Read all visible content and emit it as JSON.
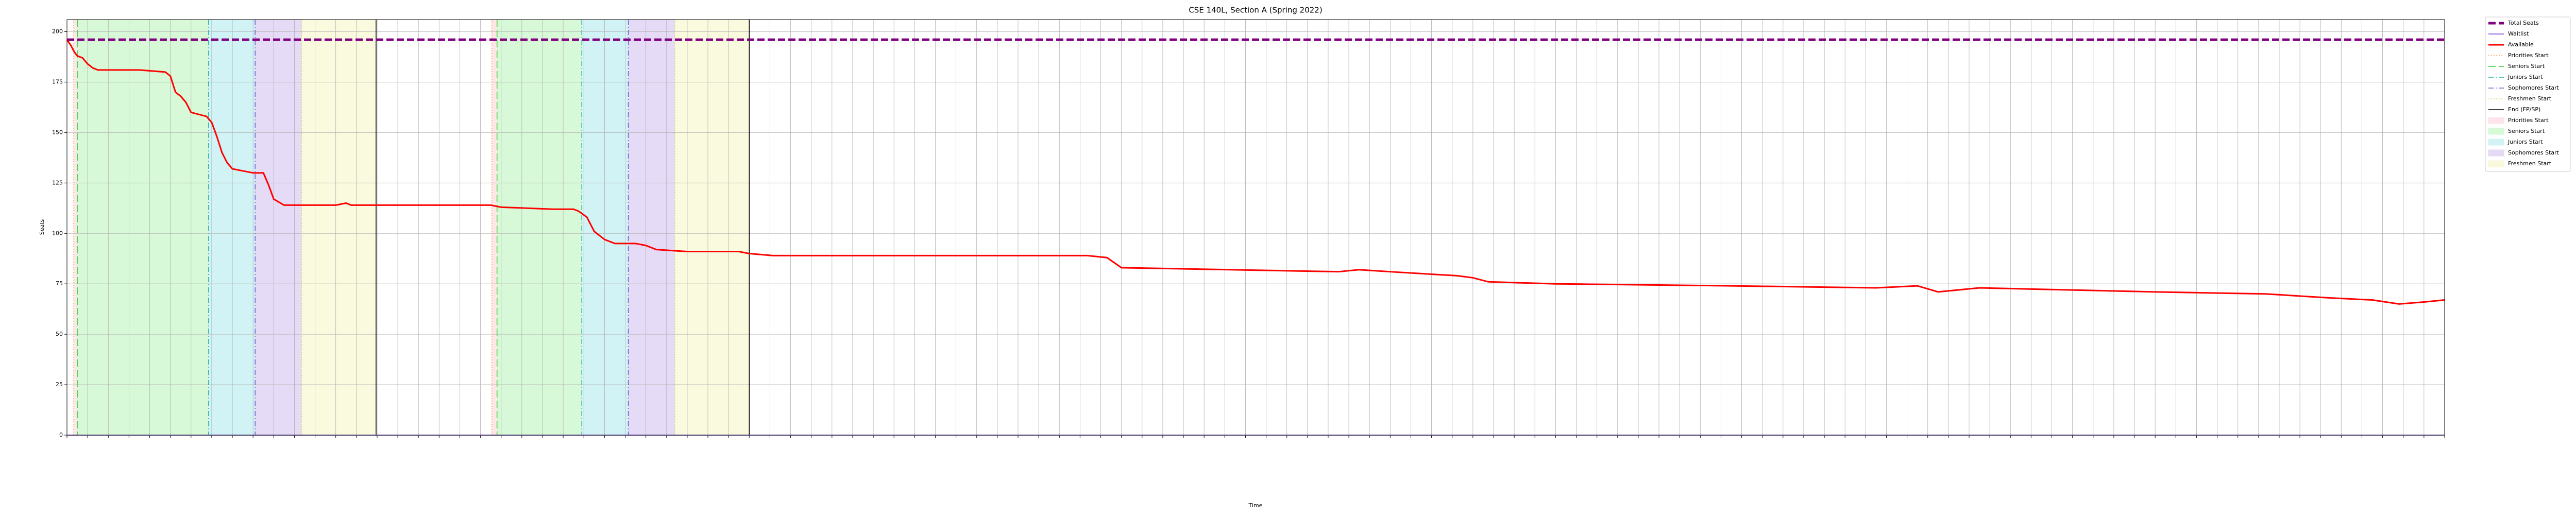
{
  "chart_data": {
    "type": "line",
    "title": "CSE 140L, Section A (Spring 2022)",
    "x_label": "Time",
    "y_label": "Seats",
    "xlim": [
      0,
      230
    ],
    "ylim": [
      0,
      206
    ],
    "yticks": [
      0,
      25,
      50,
      75,
      100,
      125,
      150,
      175,
      200
    ],
    "xticks": [
      0,
      2,
      4,
      6,
      8,
      10,
      12,
      14,
      16,
      18,
      20,
      22,
      24,
      26,
      28,
      30,
      32,
      34,
      36,
      38,
      40,
      42,
      44,
      46,
      48,
      50,
      52,
      54,
      56,
      58,
      60,
      62,
      64,
      66,
      68,
      70,
      72,
      74,
      76,
      78,
      80,
      82,
      84,
      86,
      88,
      90,
      92,
      94,
      96,
      98,
      100,
      102,
      104,
      106,
      108,
      110,
      112,
      114,
      116,
      118,
      120,
      122,
      124,
      126,
      128,
      130,
      132,
      134,
      136,
      138,
      140,
      142,
      144,
      146,
      148,
      150,
      152,
      154,
      156,
      158,
      160,
      162,
      164,
      166,
      168,
      170,
      172,
      174,
      176,
      178,
      180,
      182,
      184,
      186,
      188,
      190,
      192,
      194,
      196,
      198,
      200,
      202,
      204,
      206,
      208,
      210,
      212,
      214,
      216,
      218,
      220,
      222,
      224,
      226,
      228,
      230
    ],
    "grid": true,
    "legend": "outside-right",
    "series": [
      {
        "name": "Total Seats",
        "color": "#800080",
        "dash": "dashed",
        "width": 5,
        "x": [
          0,
          230
        ],
        "values": [
          196,
          196
        ]
      },
      {
        "name": "Waitlist",
        "color": "#9370db",
        "dash": "solid",
        "width": 2,
        "x": [
          0,
          230
        ],
        "values": [
          0,
          0
        ]
      },
      {
        "name": "Available",
        "color": "#ff0000",
        "dash": "solid",
        "width": 3,
        "x": [
          0,
          0.4,
          0.7,
          1,
          1.5,
          2,
          2.5,
          3,
          7,
          9.5,
          10,
          10.5,
          11,
          11.5,
          12,
          13.5,
          14,
          14.5,
          15,
          15.5,
          16,
          17,
          18,
          19,
          19.5,
          20,
          21,
          26,
          27,
          27.5,
          41,
          42,
          47,
          49,
          49.5,
          50.3,
          51,
          52,
          53,
          55,
          56,
          57,
          60,
          65,
          66,
          68.3,
          98.7,
          100.6,
          102,
          123,
          125,
          128,
          134.5,
          136,
          137.5,
          144,
          161,
          175,
          179,
          181,
          185,
          202,
          212.7,
          219,
          223,
          225.6,
          228,
          230
        ],
        "values": [
          196,
          193,
          190,
          188,
          187,
          184,
          182,
          181,
          181,
          180,
          178,
          170,
          168,
          165,
          160,
          158,
          155,
          148,
          140,
          135,
          132,
          131,
          130,
          130,
          124,
          117,
          114,
          114,
          115,
          114,
          114,
          113,
          112,
          112,
          111,
          108,
          101,
          97,
          95,
          95,
          94,
          92,
          91,
          91,
          90,
          89,
          89,
          88,
          83,
          81,
          82,
          81,
          79,
          78,
          76,
          75,
          74,
          73,
          74,
          71,
          73,
          71,
          70,
          68,
          67,
          65,
          66,
          67
        ]
      }
    ],
    "vlines": [
      {
        "name": "Priorities Start",
        "color": "#f4a460",
        "dash": "dotted",
        "x": [
          0.65,
          41.1
        ]
      },
      {
        "name": "Seniors Start",
        "color": "#32cd32",
        "dash": "dashed",
        "x": [
          1,
          41.6
        ]
      },
      {
        "name": "Juniors Start",
        "color": "#20b2aa",
        "dash": "dashdot",
        "x": [
          13.7,
          49.8
        ]
      },
      {
        "name": "Sophomores Start",
        "color": "#6a5acd",
        "dash": "dashdot",
        "x": [
          18.2,
          54.3
        ]
      },
      {
        "name": "Freshmen Start",
        "color": "#d4d46a",
        "dash": "dotted",
        "x": [
          22.7,
          58.8
        ]
      },
      {
        "name": "End (FP/SP)",
        "color": "#000000",
        "dash": "solid",
        "x": [
          29.9,
          66
        ]
      }
    ],
    "spans": [
      {
        "name": "Priorities Start",
        "color": "#ffb6c1",
        "ranges": [
          [
            0.65,
            1
          ],
          [
            41.1,
            41.6
          ]
        ]
      },
      {
        "name": "Seniors Start",
        "color": "#90ee90",
        "ranges": [
          [
            1,
            13.7
          ],
          [
            41.6,
            49.8
          ]
        ]
      },
      {
        "name": "Juniors Start",
        "color": "#7fdde6",
        "ranges": [
          [
            13.7,
            18.2
          ],
          [
            49.8,
            54.3
          ]
        ]
      },
      {
        "name": "Sophomores Start",
        "color": "#b497e8",
        "ranges": [
          [
            18.2,
            22.7
          ],
          [
            54.3,
            58.8
          ]
        ]
      },
      {
        "name": "Freshmen Start",
        "color": "#f0f0a0",
        "ranges": [
          [
            22.7,
            29.9
          ],
          [
            58.8,
            66
          ]
        ]
      }
    ]
  }
}
